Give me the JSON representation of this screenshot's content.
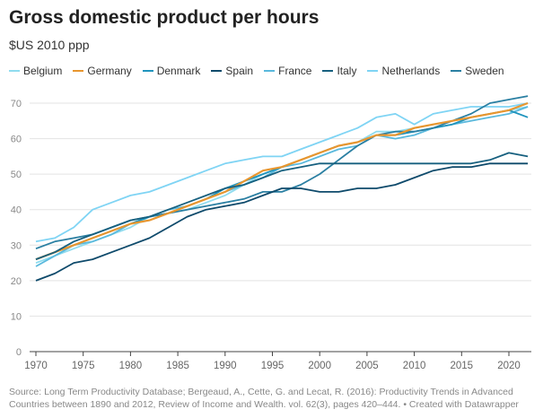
{
  "chart_data": {
    "type": "line",
    "title": "Gross domestic product per hours",
    "subtitle": "$US 2010 ppp",
    "xlabel": "",
    "ylabel": "",
    "ylim": [
      0,
      70
    ],
    "xlim": [
      1970,
      2022
    ],
    "yticks": [
      "0",
      "10",
      "20",
      "30",
      "40",
      "50",
      "60",
      "70"
    ],
    "xticks": [
      "1970",
      "1975",
      "1980",
      "1985",
      "1990",
      "1995",
      "2000",
      "2005",
      "2010",
      "2015",
      "2020"
    ],
    "legend_position": "top",
    "x": [
      1970,
      1972,
      1974,
      1976,
      1978,
      1980,
      1982,
      1984,
      1986,
      1988,
      1990,
      1992,
      1994,
      1996,
      1998,
      2000,
      2002,
      2004,
      2006,
      2008,
      2010,
      2012,
      2014,
      2016,
      2018,
      2020,
      2022
    ],
    "series": [
      {
        "name": "Belgium",
        "color": "#8fdcef",
        "values": [
          25,
          27,
          29,
          31,
          33,
          35,
          38,
          39,
          40,
          42,
          44,
          47,
          50,
          52,
          54,
          56,
          58,
          59,
          62,
          62,
          63,
          64,
          65,
          66,
          67,
          68,
          69
        ]
      },
      {
        "name": "Germany",
        "color": "#e8962f",
        "values": [
          26,
          28,
          30,
          32,
          34,
          36,
          37,
          39,
          41,
          43,
          45,
          48,
          51,
          52,
          54,
          56,
          58,
          59,
          61,
          61,
          63,
          64,
          65,
          66,
          67,
          68,
          70
        ]
      },
      {
        "name": "Denmark",
        "color": "#1f94bd",
        "values": [
          26,
          28,
          30,
          32,
          34,
          36,
          38,
          39,
          41,
          43,
          46,
          48,
          50,
          52,
          54,
          56,
          58,
          59,
          61,
          61,
          62,
          63,
          64,
          66,
          67,
          68,
          66
        ]
      },
      {
        "name": "Spain",
        "color": "#0e4a6b",
        "values": [
          20,
          22,
          25,
          26,
          28,
          30,
          32,
          35,
          38,
          40,
          41,
          42,
          44,
          46,
          46,
          45,
          45,
          46,
          46,
          47,
          49,
          51,
          52,
          52,
          53,
          53,
          53
        ]
      },
      {
        "name": "France",
        "color": "#5ab9dd",
        "values": [
          24,
          27,
          30,
          31,
          33,
          36,
          38,
          40,
          41,
          43,
          45,
          47,
          49,
          52,
          53,
          55,
          57,
          58,
          61,
          60,
          61,
          63,
          64,
          65,
          66,
          67,
          69
        ]
      },
      {
        "name": "Italy",
        "color": "#17607f",
        "values": [
          26,
          28,
          31,
          33,
          35,
          37,
          38,
          40,
          42,
          44,
          46,
          47,
          49,
          51,
          52,
          53,
          53,
          53,
          53,
          53,
          53,
          53,
          53,
          53,
          54,
          56,
          55
        ]
      },
      {
        "name": "Netherlands",
        "color": "#7fd4f4",
        "values": [
          31,
          32,
          35,
          40,
          42,
          44,
          45,
          47,
          49,
          51,
          53,
          54,
          55,
          55,
          57,
          59,
          61,
          63,
          66,
          67,
          64,
          67,
          68,
          69,
          69,
          69,
          70
        ]
      },
      {
        "name": "Sweden",
        "color": "#2a7fa2",
        "values": [
          29,
          31,
          32,
          33,
          35,
          37,
          38,
          39,
          40,
          41,
          42,
          43,
          45,
          45,
          47,
          50,
          54,
          58,
          61,
          62,
          62,
          63,
          65,
          67,
          70,
          71,
          72
        ]
      }
    ]
  },
  "source": "Source: Long Term Productivity Database; Bergeaud, A., Cette, G. and Lecat, R. (2016):  Productivity Trends in Advanced Countries between 1890 and 2012,  Review of Income and Wealth. vol. 62(3), pages 420–444.  • Created with Datawrapper"
}
